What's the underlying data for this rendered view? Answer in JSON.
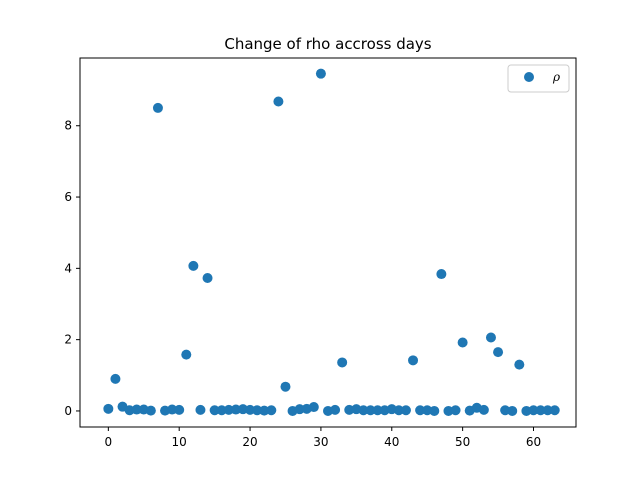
{
  "chart_data": {
    "type": "scatter",
    "title": "Change of rho accross days",
    "xlabel": "",
    "ylabel": "",
    "xlim": [
      -4,
      66
    ],
    "ylim": [
      -0.45,
      9.9
    ],
    "xticks": [
      0,
      10,
      20,
      30,
      40,
      50,
      60
    ],
    "yticks": [
      0,
      2,
      4,
      6,
      8
    ],
    "grid": false,
    "legend_position": "top-right",
    "marker_color": "#1f77b4",
    "series": [
      {
        "name": "ρ",
        "x": [
          0,
          1,
          2,
          3,
          4,
          5,
          6,
          7,
          8,
          9,
          10,
          11,
          12,
          13,
          14,
          15,
          16,
          17,
          18,
          19,
          20,
          21,
          22,
          23,
          24,
          25,
          26,
          27,
          28,
          29,
          30,
          31,
          32,
          33,
          34,
          35,
          36,
          37,
          38,
          39,
          40,
          41,
          42,
          43,
          44,
          45,
          46,
          47,
          48,
          49,
          50,
          51,
          52,
          53,
          54,
          55,
          56,
          57,
          58,
          59,
          60,
          61,
          62,
          63
        ],
        "y": [
          0.06,
          0.9,
          0.12,
          0.02,
          0.04,
          0.04,
          0.01,
          8.5,
          0.01,
          0.04,
          0.03,
          1.58,
          4.07,
          0.03,
          3.73,
          0.02,
          0.02,
          0.03,
          0.04,
          0.05,
          0.03,
          0.02,
          0.01,
          0.02,
          8.68,
          0.68,
          0.0,
          0.05,
          0.06,
          0.11,
          9.46,
          0.0,
          0.03,
          1.36,
          0.03,
          0.05,
          0.02,
          0.02,
          0.02,
          0.02,
          0.05,
          0.02,
          0.02,
          1.42,
          0.02,
          0.02,
          0.0,
          3.84,
          0.0,
          0.02,
          1.92,
          0.01,
          0.09,
          0.03,
          2.06,
          1.65,
          0.02,
          0.0,
          1.3,
          0.0,
          0.02,
          0.02,
          0.02,
          0.02
        ]
      }
    ]
  }
}
